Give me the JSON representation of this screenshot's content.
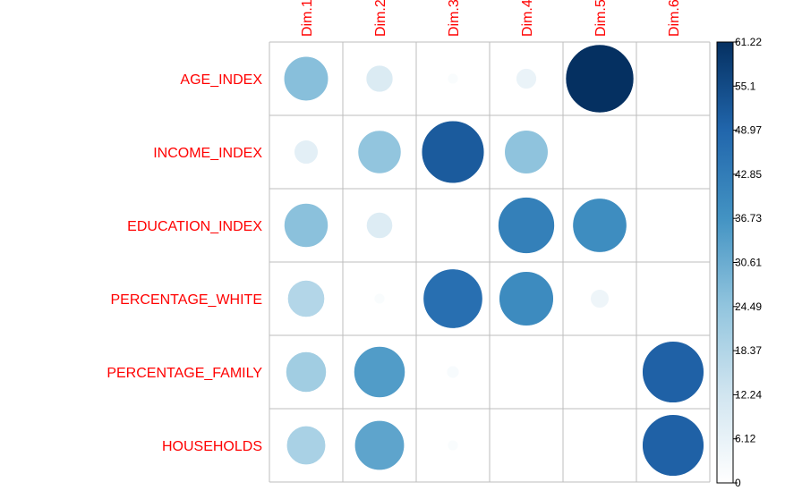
{
  "chart_data": {
    "type": "heatmap",
    "title": "",
    "columns": [
      "Dim.1",
      "Dim.2",
      "Dim.3",
      "Dim.4",
      "Dim.5",
      "Dim.6"
    ],
    "rows": [
      "AGE_INDEX",
      "INCOME_INDEX",
      "EDUCATION_INDEX",
      "PERCENTAGE_WHITE",
      "PERCENTAGE_FAMILY",
      "HOUSEHOLDS"
    ],
    "values": [
      [
        26.0,
        9.5,
        1.5,
        5.5,
        61.22,
        0.0
      ],
      [
        7.5,
        24.5,
        51.5,
        25.0,
        0.0,
        0.0
      ],
      [
        25.5,
        9.0,
        0.0,
        42.0,
        38.5,
        0.0
      ],
      [
        18.0,
        1.5,
        46.5,
        39.0,
        4.5,
        0.0
      ],
      [
        21.5,
        34.5,
        2.0,
        0.0,
        0.0,
        50.0
      ],
      [
        20.0,
        32.5,
        1.5,
        0.0,
        0.0,
        50.0
      ]
    ],
    "scale": {
      "min": 0,
      "max": 61.22,
      "ticks": [
        "61.22",
        "55.1",
        "48.97",
        "42.85",
        "36.73",
        "30.61",
        "24.49",
        "18.37",
        "12.24",
        "6.12",
        "0"
      ]
    },
    "glyph": "circle",
    "legend": "right colorbar",
    "colors": {
      "label_text": "#ff0000",
      "grid": "#bebebe",
      "scale_low": "#ffffff",
      "scale_high": "#053061",
      "tick_text": "#000000"
    }
  }
}
